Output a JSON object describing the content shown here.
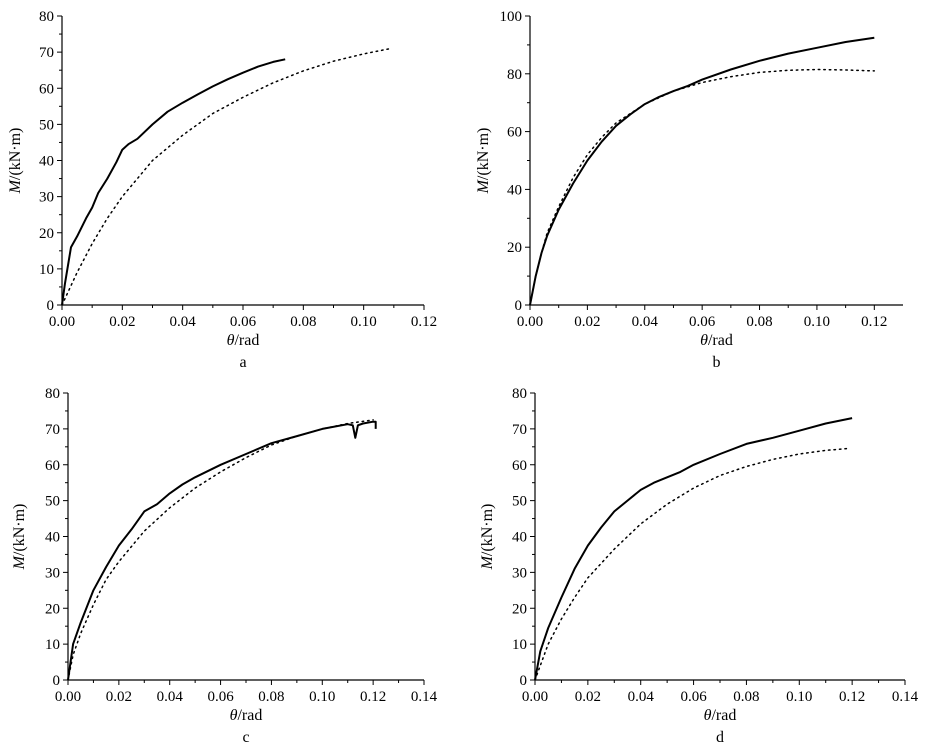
{
  "figure": {
    "panels": [
      "a",
      "b",
      "c",
      "d"
    ]
  },
  "chart_data": [
    {
      "panel_label": "a",
      "type": "line",
      "xlabel": "θ/rad",
      "xlabel_symbol": "θ",
      "xlabel_unit": "/rad",
      "ylabel": "M/(kN·m)",
      "ylabel_symbol": "M",
      "ylabel_unit": "/(kN·m)",
      "xlim": [
        0,
        0.12
      ],
      "ylim": [
        0,
        80
      ],
      "x_ticks": [
        0,
        0.02,
        0.04,
        0.06,
        0.08,
        0.1,
        0.12
      ],
      "x_tick_labels": [
        "0.00",
        "0.02",
        "0.04",
        "0.06",
        "0.08",
        "0.10",
        "0.12"
      ],
      "y_ticks": [
        0,
        10,
        20,
        30,
        40,
        50,
        60,
        70,
        80
      ],
      "y_tick_labels": [
        "0",
        "10",
        "20",
        "30",
        "40",
        "50",
        "60",
        "70",
        "80"
      ],
      "grid": false,
      "series": [
        {
          "style": "solid",
          "color": "#000000",
          "points": [
            [
              0,
              0
            ],
            [
              0.001,
              6
            ],
            [
              0.002,
              11
            ],
            [
              0.003,
              16
            ],
            [
              0.005,
              19
            ],
            [
              0.008,
              24
            ],
            [
              0.01,
              27
            ],
            [
              0.012,
              31
            ],
            [
              0.015,
              35
            ],
            [
              0.018,
              39.5
            ],
            [
              0.02,
              43
            ],
            [
              0.022,
              44.5
            ],
            [
              0.025,
              46
            ],
            [
              0.03,
              50
            ],
            [
              0.035,
              53.5
            ],
            [
              0.04,
              56
            ],
            [
              0.045,
              58.3
            ],
            [
              0.05,
              60.5
            ],
            [
              0.055,
              62.5
            ],
            [
              0.06,
              64.3
            ],
            [
              0.065,
              66
            ],
            [
              0.07,
              67.3
            ],
            [
              0.074,
              68
            ]
          ]
        },
        {
          "style": "dotted",
          "color": "#000000",
          "points": [
            [
              0,
              0
            ],
            [
              0.005,
              9
            ],
            [
              0.01,
              17
            ],
            [
              0.015,
              24
            ],
            [
              0.02,
              30
            ],
            [
              0.025,
              35
            ],
            [
              0.03,
              40
            ],
            [
              0.04,
              47
            ],
            [
              0.05,
              53
            ],
            [
              0.06,
              57.5
            ],
            [
              0.07,
              61.5
            ],
            [
              0.08,
              64.8
            ],
            [
              0.09,
              67.5
            ],
            [
              0.1,
              69.5
            ],
            [
              0.109,
              71
            ]
          ]
        }
      ]
    },
    {
      "panel_label": "b",
      "type": "line",
      "xlabel": "θ/rad",
      "xlabel_symbol": "θ",
      "xlabel_unit": "/rad",
      "ylabel": "M/(kN·m)",
      "ylabel_symbol": "M",
      "ylabel_unit": "/(kN·m)",
      "xlim": [
        0,
        0.13
      ],
      "ylim": [
        0,
        100
      ],
      "x_ticks": [
        0,
        0.02,
        0.04,
        0.06,
        0.08,
        0.1,
        0.12
      ],
      "x_tick_labels": [
        "0.00",
        "0.02",
        "0.04",
        "0.06",
        "0.08",
        "0.10",
        "0.12"
      ],
      "y_ticks": [
        0,
        20,
        40,
        60,
        80,
        100
      ],
      "y_tick_labels": [
        "0",
        "20",
        "40",
        "60",
        "80",
        "100"
      ],
      "grid": false,
      "series": [
        {
          "style": "solid",
          "color": "#000000",
          "points": [
            [
              0,
              0
            ],
            [
              0.002,
              10
            ],
            [
              0.004,
              18
            ],
            [
              0.006,
              24
            ],
            [
              0.01,
              33
            ],
            [
              0.015,
              42
            ],
            [
              0.02,
              50
            ],
            [
              0.025,
              56.5
            ],
            [
              0.03,
              62
            ],
            [
              0.035,
              66
            ],
            [
              0.04,
              69.5
            ],
            [
              0.045,
              72
            ],
            [
              0.05,
              74
            ],
            [
              0.055,
              75.8
            ],
            [
              0.06,
              78
            ],
            [
              0.07,
              81.5
            ],
            [
              0.08,
              84.5
            ],
            [
              0.09,
              87
            ],
            [
              0.1,
              89
            ],
            [
              0.11,
              91
            ],
            [
              0.12,
              92.5
            ]
          ]
        },
        {
          "style": "dotted",
          "color": "#000000",
          "points": [
            [
              0,
              0
            ],
            [
              0.002,
              10
            ],
            [
              0.004,
              18
            ],
            [
              0.006,
              25
            ],
            [
              0.01,
              34
            ],
            [
              0.015,
              44
            ],
            [
              0.02,
              52
            ],
            [
              0.025,
              58
            ],
            [
              0.03,
              63
            ],
            [
              0.04,
              69.5
            ],
            [
              0.05,
              74
            ],
            [
              0.06,
              77
            ],
            [
              0.07,
              79
            ],
            [
              0.08,
              80.5
            ],
            [
              0.09,
              81.2
            ],
            [
              0.1,
              81.5
            ],
            [
              0.11,
              81.3
            ],
            [
              0.12,
              81
            ]
          ]
        }
      ]
    },
    {
      "panel_label": "c",
      "type": "line",
      "xlabel": "θ/rad",
      "xlabel_symbol": "θ",
      "xlabel_unit": "/rad",
      "ylabel": "M/(kN·m)",
      "ylabel_symbol": "M",
      "ylabel_unit": "/(kN·m)",
      "xlim": [
        0,
        0.14
      ],
      "ylim": [
        0,
        80
      ],
      "x_ticks": [
        0,
        0.02,
        0.04,
        0.06,
        0.08,
        0.1,
        0.12,
        0.14
      ],
      "x_tick_labels": [
        "0.00",
        "0.02",
        "0.04",
        "0.06",
        "0.08",
        "0.10",
        "0.12",
        "0.14"
      ],
      "y_ticks": [
        0,
        10,
        20,
        30,
        40,
        50,
        60,
        70,
        80
      ],
      "y_tick_labels": [
        "0",
        "10",
        "20",
        "30",
        "40",
        "50",
        "60",
        "70",
        "80"
      ],
      "grid": false,
      "series": [
        {
          "style": "solid",
          "color": "#000000",
          "points": [
            [
              0,
              0
            ],
            [
              0.002,
              10
            ],
            [
              0.005,
              16
            ],
            [
              0.01,
              25
            ],
            [
              0.015,
              31.5
            ],
            [
              0.02,
              37.5
            ],
            [
              0.025,
              42
            ],
            [
              0.03,
              47
            ],
            [
              0.035,
              49
            ],
            [
              0.04,
              52
            ],
            [
              0.045,
              54.5
            ],
            [
              0.05,
              56.5
            ],
            [
              0.06,
              60
            ],
            [
              0.07,
              63
            ],
            [
              0.08,
              66
            ],
            [
              0.09,
              68
            ],
            [
              0.1,
              70
            ],
            [
              0.11,
              71.3
            ],
            [
              0.112,
              71
            ],
            [
              0.113,
              67.5
            ],
            [
              0.114,
              71
            ],
            [
              0.116,
              71.5
            ],
            [
              0.12,
              72
            ],
            [
              0.121,
              72
            ],
            [
              0.121,
              70
            ]
          ]
        },
        {
          "style": "dotted",
          "color": "#000000",
          "points": [
            [
              0,
              0
            ],
            [
              0.002,
              7
            ],
            [
              0.005,
              13
            ],
            [
              0.01,
              21
            ],
            [
              0.015,
              28
            ],
            [
              0.02,
              33
            ],
            [
              0.03,
              41.5
            ],
            [
              0.04,
              48
            ],
            [
              0.05,
              53.5
            ],
            [
              0.06,
              58
            ],
            [
              0.07,
              62
            ],
            [
              0.08,
              65.5
            ],
            [
              0.09,
              68
            ],
            [
              0.1,
              70
            ],
            [
              0.11,
              71.5
            ],
            [
              0.12,
              72.5
            ]
          ]
        }
      ]
    },
    {
      "panel_label": "d",
      "type": "line",
      "xlabel": "θ/rad",
      "xlabel_symbol": "θ",
      "xlabel_unit": "/rad",
      "ylabel": "M/(kN·m)",
      "ylabel_symbol": "M",
      "ylabel_unit": "/(kN·m)",
      "xlim": [
        0,
        0.14
      ],
      "ylim": [
        0,
        80
      ],
      "x_ticks": [
        0,
        0.02,
        0.04,
        0.06,
        0.08,
        0.1,
        0.12,
        0.14
      ],
      "x_tick_labels": [
        "0.00",
        "0.02",
        "0.04",
        "0.06",
        "0.08",
        "0.10",
        "0.12",
        "0.14"
      ],
      "y_ticks": [
        0,
        10,
        20,
        30,
        40,
        50,
        60,
        70,
        80
      ],
      "y_tick_labels": [
        "0",
        "10",
        "20",
        "30",
        "40",
        "50",
        "60",
        "70",
        "80"
      ],
      "grid": false,
      "series": [
        {
          "style": "solid",
          "color": "#000000",
          "points": [
            [
              0,
              0
            ],
            [
              0.002,
              8
            ],
            [
              0.005,
              14.5
            ],
            [
              0.01,
              23
            ],
            [
              0.015,
              31
            ],
            [
              0.02,
              37.5
            ],
            [
              0.025,
              42.5
            ],
            [
              0.03,
              47
            ],
            [
              0.035,
              50
            ],
            [
              0.04,
              53
            ],
            [
              0.045,
              55
            ],
            [
              0.05,
              56.5
            ],
            [
              0.055,
              58
            ],
            [
              0.06,
              60
            ],
            [
              0.07,
              63
            ],
            [
              0.08,
              65.8
            ],
            [
              0.09,
              67.5
            ],
            [
              0.1,
              69.5
            ],
            [
              0.11,
              71.5
            ],
            [
              0.12,
              73
            ]
          ]
        },
        {
          "style": "dotted",
          "color": "#000000",
          "points": [
            [
              0,
              0
            ],
            [
              0.005,
              10
            ],
            [
              0.01,
              17
            ],
            [
              0.015,
              23
            ],
            [
              0.02,
              28.5
            ],
            [
              0.03,
              36.5
            ],
            [
              0.04,
              43.5
            ],
            [
              0.05,
              49
            ],
            [
              0.06,
              53.5
            ],
            [
              0.07,
              57
            ],
            [
              0.08,
              59.5
            ],
            [
              0.09,
              61.5
            ],
            [
              0.1,
              63
            ],
            [
              0.11,
              64
            ],
            [
              0.118,
              64.5
            ]
          ]
        }
      ]
    }
  ]
}
